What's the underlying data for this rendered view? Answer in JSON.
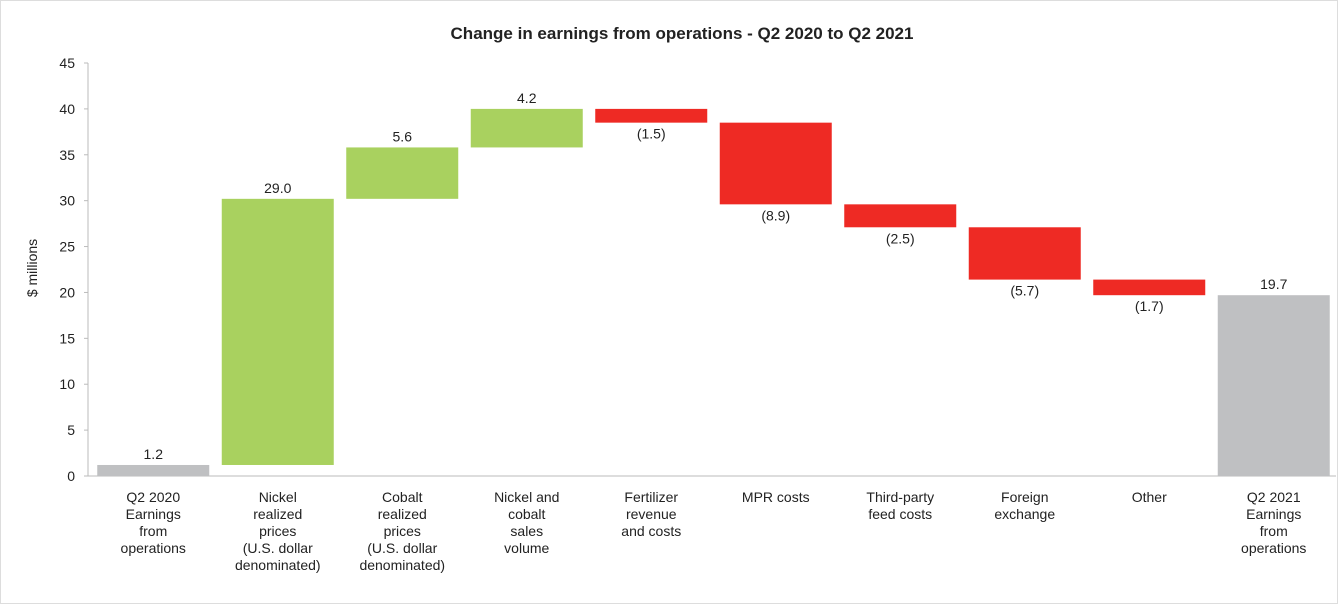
{
  "chart_data": {
    "type": "waterfall",
    "title": "Change in earnings from operations - Q2 2020 to Q2 2021",
    "ylabel": "$ millions",
    "categories": [
      "Q2 2020\nEarnings\nfrom\noperations",
      "Nickel\nrealized\nprices\n(U.S. dollar\ndenominated)",
      "Cobalt\nrealized\nprices\n(U.S. dollar\ndenominated)",
      "Nickel and\ncobalt\nsales\nvolume",
      "Fertilizer\nrevenue\nand costs",
      "MPR costs",
      "Third-party\nfeed costs",
      "Foreign\nexchange",
      "Other",
      "Q2 2021\nEarnings\nfrom\noperations"
    ],
    "values": [
      1.2,
      29.0,
      5.6,
      4.2,
      -1.5,
      -8.9,
      -2.5,
      -5.7,
      -1.7,
      19.7
    ],
    "value_labels": [
      "1.2",
      "29.0",
      "5.6",
      "4.2",
      "(1.5)",
      "(8.9)",
      "(2.5)",
      "(5.7)",
      "(1.7)",
      "19.7"
    ],
    "total_indices": [
      0,
      9
    ],
    "colors": {
      "total": "#bfc0c2",
      "increase": "#a9d15f",
      "decrease": "#ee2a24"
    },
    "ylim": [
      0,
      45
    ],
    "yticks": [
      0,
      5,
      10,
      15,
      20,
      25,
      30,
      35,
      40,
      45
    ]
  }
}
